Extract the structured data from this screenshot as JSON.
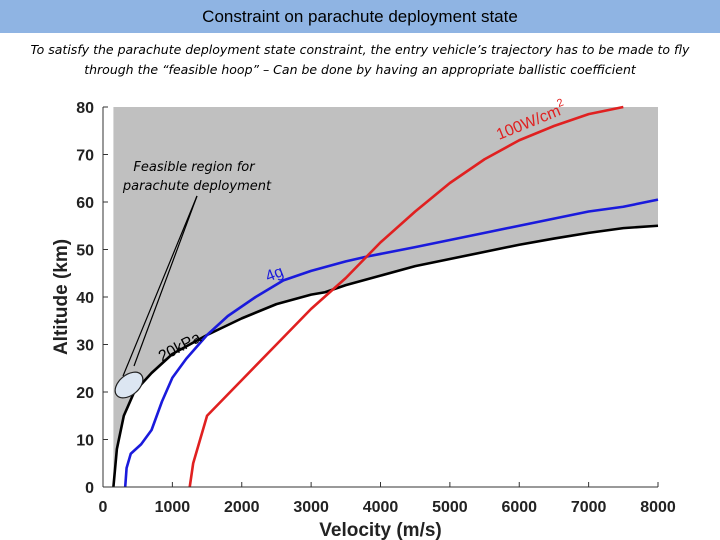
{
  "header": {
    "title": "Constraint on parachute deployment state",
    "subtitle_line1": "To satisfy the parachute deployment state constraint, the entry vehicle’s trajectory has to be made to fly",
    "subtitle_line2": "through the “feasible hoop” – Can be done by having an appropriate ballistic coefficient"
  },
  "chart_data": {
    "type": "line",
    "title": "",
    "xlabel": "Velocity (m/s)",
    "ylabel": "Altitude (km)",
    "xlim": [
      0,
      8000
    ],
    "ylim": [
      0,
      80
    ],
    "xticks": [
      0,
      1000,
      2000,
      3000,
      4000,
      5000,
      6000,
      7000,
      8000
    ],
    "yticks": [
      0,
      10,
      20,
      30,
      40,
      50,
      60,
      70,
      80
    ],
    "grid": false,
    "shaded_region": {
      "label": "feasible region (gray)",
      "color": "#c0c0c0"
    },
    "series": [
      {
        "name": "20kPa",
        "color": "#000000",
        "points": [
          [
            150,
            0
          ],
          [
            200,
            8
          ],
          [
            300,
            15
          ],
          [
            450,
            20
          ],
          [
            700,
            24
          ],
          [
            1000,
            28
          ],
          [
            1500,
            32
          ],
          [
            2000,
            35.5
          ],
          [
            2500,
            38.5
          ],
          [
            3000,
            40.5
          ],
          [
            3200,
            41
          ],
          [
            3500,
            42.5
          ],
          [
            4000,
            44.5
          ],
          [
            4500,
            46.5
          ],
          [
            5000,
            48
          ],
          [
            5500,
            49.5
          ],
          [
            6000,
            51
          ],
          [
            6500,
            52.3
          ],
          [
            7000,
            53.5
          ],
          [
            7500,
            54.5
          ],
          [
            8000,
            55
          ]
        ]
      },
      {
        "name": "4g",
        "color": "#1a1adc",
        "points": [
          [
            320,
            0
          ],
          [
            340,
            4
          ],
          [
            400,
            7
          ],
          [
            550,
            9
          ],
          [
            700,
            12
          ],
          [
            850,
            18
          ],
          [
            1000,
            23
          ],
          [
            1200,
            27
          ],
          [
            1500,
            32
          ],
          [
            1800,
            36
          ],
          [
            2200,
            40
          ],
          [
            2600,
            43.5
          ],
          [
            3000,
            45.5
          ],
          [
            3500,
            47.5
          ],
          [
            3800,
            48.5
          ],
          [
            4500,
            50.5
          ],
          [
            5000,
            52
          ],
          [
            5500,
            53.5
          ],
          [
            6000,
            55
          ],
          [
            6500,
            56.5
          ],
          [
            7000,
            58
          ],
          [
            7500,
            59
          ],
          [
            8000,
            60.5
          ]
        ]
      },
      {
        "name": "100W/cm²",
        "color": "#e02020",
        "points": [
          [
            1250,
            0
          ],
          [
            1300,
            5
          ],
          [
            1400,
            10
          ],
          [
            1500,
            15
          ],
          [
            1700,
            18
          ],
          [
            2000,
            22.5
          ],
          [
            2500,
            30
          ],
          [
            3000,
            37.5
          ],
          [
            3500,
            44
          ],
          [
            3800,
            48.5
          ],
          [
            4000,
            51.5
          ],
          [
            4500,
            58
          ],
          [
            5000,
            64
          ],
          [
            5500,
            69
          ],
          [
            6000,
            73
          ],
          [
            6500,
            76
          ],
          [
            7000,
            78.5
          ],
          [
            7500,
            80
          ]
        ]
      }
    ],
    "annotations": [
      {
        "text": "Feasible region for",
        "text2": "parachute deployment"
      },
      {
        "text": "20kPa"
      },
      {
        "text": "4g"
      },
      {
        "text": "100W/cm",
        "superscript": "2"
      }
    ]
  }
}
